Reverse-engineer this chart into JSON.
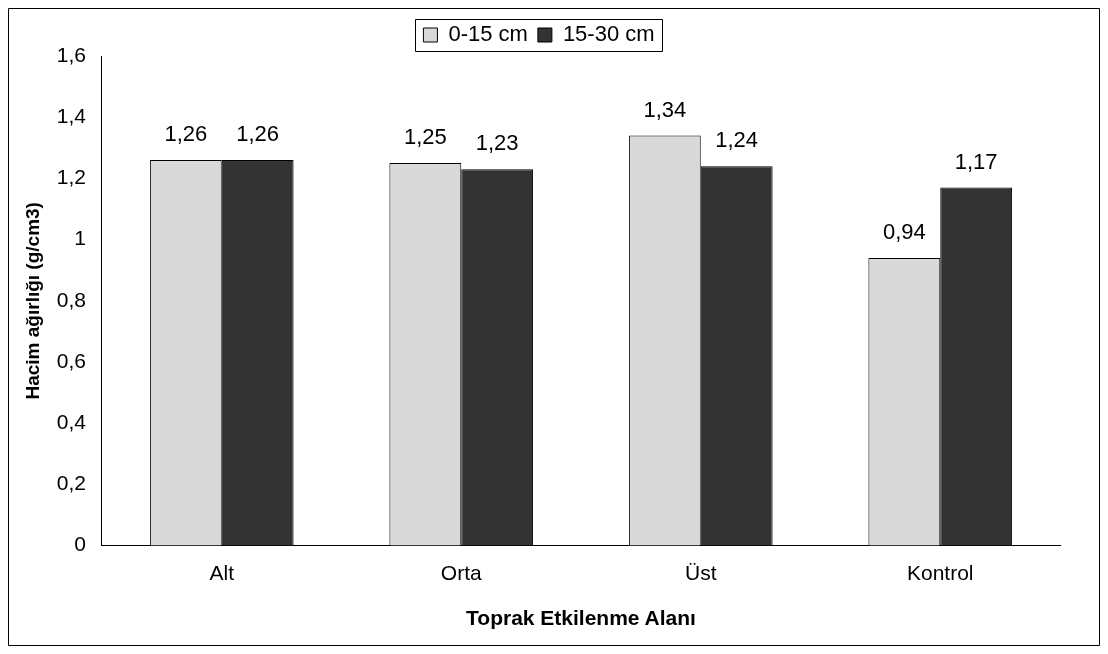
{
  "chart_data": {
    "type": "bar",
    "xlabel": "Toprak Etkilenme Alanı",
    "ylabel": "Hacim ağırlığı (g/cm3)",
    "categories": [
      "Alt",
      "Orta",
      "Üst",
      "Kontrol"
    ],
    "series": [
      {
        "name": "0-15 cm",
        "color": "#d9d9d9",
        "values": [
          1.26,
          1.25,
          1.34,
          0.94
        ],
        "value_labels": [
          "1,26",
          "1,25",
          "1,34",
          "0,94"
        ]
      },
      {
        "name": "15-30 cm",
        "color": "#333333",
        "values": [
          1.26,
          1.23,
          1.24,
          1.17
        ],
        "value_labels": [
          "1,26",
          "1,23",
          "1,24",
          "1,17"
        ]
      }
    ],
    "ylim": [
      0,
      1.6
    ],
    "yticks": [
      {
        "value": 0,
        "label": "0"
      },
      {
        "value": 0.2,
        "label": "0,2"
      },
      {
        "value": 0.4,
        "label": "0,4"
      },
      {
        "value": 0.6,
        "label": "0,6"
      },
      {
        "value": 0.8,
        "label": "0,8"
      },
      {
        "value": 1,
        "label": "1"
      },
      {
        "value": 1.2,
        "label": "1,2"
      },
      {
        "value": 1.4,
        "label": "1,4"
      },
      {
        "value": 1.6,
        "label": "1,6"
      }
    ],
    "grid": false,
    "legend": "top"
  }
}
